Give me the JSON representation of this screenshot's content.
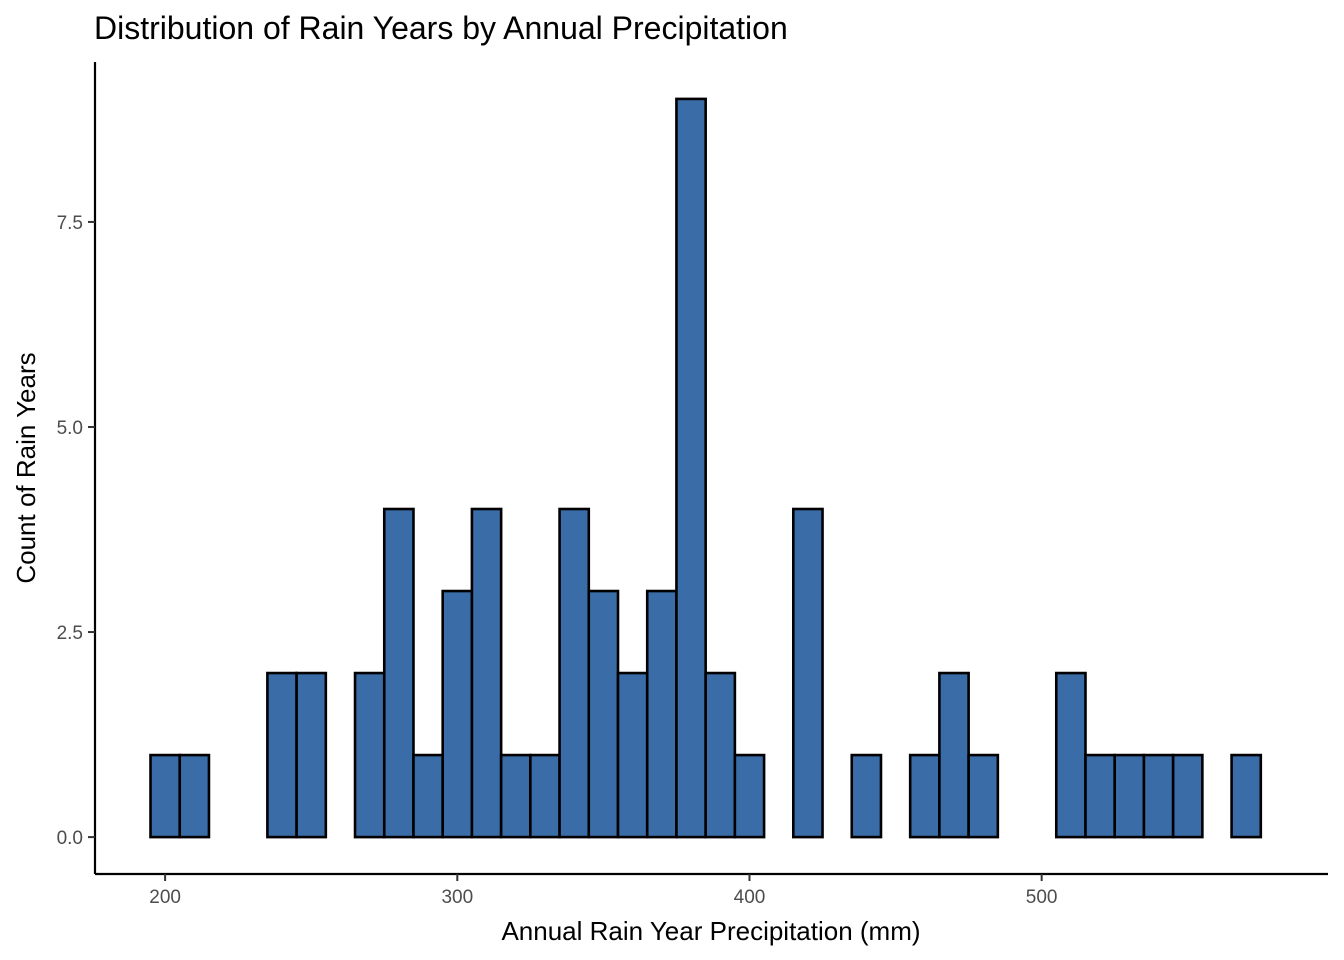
{
  "chart_data": {
    "type": "bar",
    "subtype": "histogram",
    "title": "Distribution of Rain Years by Annual Precipitation",
    "xlabel": "Annual Rain Year Precipitation (mm)",
    "ylabel": "Count of Rain Years",
    "bin_width": 10,
    "bins_start": [
      195,
      205,
      215,
      225,
      235,
      245,
      255,
      265,
      275,
      285,
      295,
      305,
      315,
      325,
      335,
      345,
      355,
      365,
      375,
      385,
      395,
      405,
      415,
      425,
      435,
      445,
      455,
      465,
      475,
      485,
      495,
      505,
      515,
      525,
      535,
      545,
      555,
      565
    ],
    "counts": [
      1,
      1,
      0,
      0,
      2,
      2,
      0,
      2,
      4,
      1,
      3,
      4,
      1,
      1,
      4,
      3,
      2,
      3,
      9,
      2,
      1,
      0,
      4,
      0,
      1,
      0,
      1,
      2,
      1,
      0,
      0,
      2,
      1,
      1,
      1,
      1,
      0,
      1
    ],
    "xlim": [
      176,
      598
    ],
    "ylim": [
      -0.45,
      9.45
    ],
    "x_ticks": [
      200,
      300,
      400,
      500
    ],
    "x_tick_labels": [
      "200",
      "300",
      "400",
      "500"
    ],
    "y_ticks": [
      0,
      2.5,
      5,
      7.5
    ],
    "y_tick_labels": [
      "0.0",
      "2.5",
      "5.0",
      "7.5"
    ],
    "grid": false,
    "legend": "none",
    "bar_color": "#3A6DA7",
    "bar_edge_color": "#000000"
  }
}
